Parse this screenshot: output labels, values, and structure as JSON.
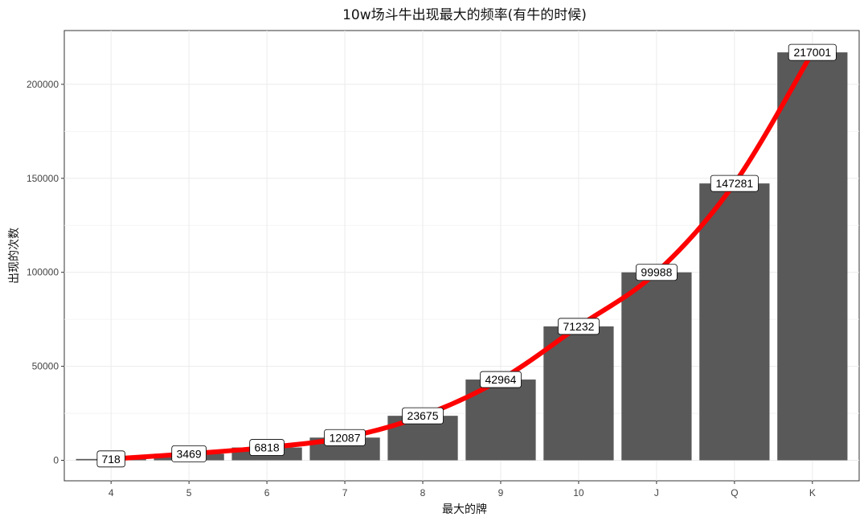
{
  "chart_data": {
    "type": "bar",
    "title": "10w场斗牛出现最大的频率(有牛的时候)",
    "xlabel": "最大的牌",
    "ylabel": "出现的次数",
    "categories": [
      "4",
      "5",
      "6",
      "7",
      "8",
      "9",
      "10",
      "J",
      "Q",
      "K"
    ],
    "values": [
      718,
      3469,
      6818,
      12087,
      23675,
      42964,
      71232,
      99988,
      147281,
      217001
    ],
    "data_labels": [
      "718",
      "3469",
      "6818",
      "12087",
      "23675",
      "42964",
      "71232",
      "99988",
      "147281",
      "217001"
    ],
    "ylim": [
      -10900,
      228600
    ],
    "yticks": [
      0,
      50000,
      100000,
      150000,
      200000
    ],
    "ytick_labels": [
      "0",
      "50000",
      "100000",
      "150000",
      "200000"
    ],
    "grid": true,
    "legend": "none",
    "bar_color": "#595959",
    "line_color": "#ff0000",
    "overlay": "smooth-line-through-values"
  }
}
